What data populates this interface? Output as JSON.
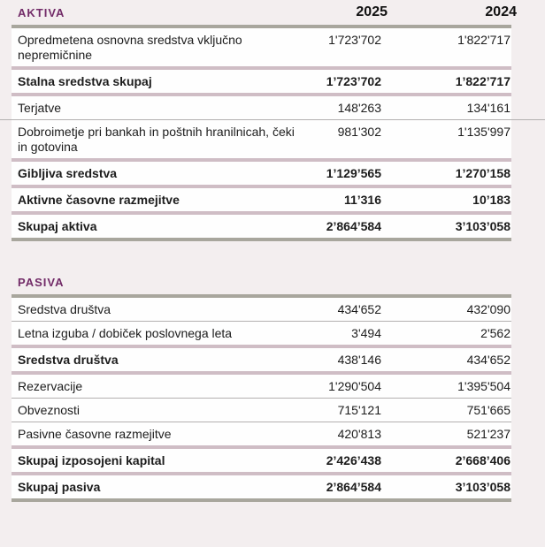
{
  "colors": {
    "page_background": "#f3eeef",
    "row_background": "#fefefe",
    "section_title": "#722b68",
    "separator_mauve": "#cfbdc5",
    "separator_gray": "#a8a69d",
    "separator_thin": "#b3b0b0",
    "text": "#1c1c1c"
  },
  "columns": {
    "year_1": "2025",
    "year_2": "2024"
  },
  "sections": [
    {
      "title": "AKTIVA",
      "show_years": true,
      "rows": [
        {
          "label_lines": [
            "Opredmetena osnovna sredstva vključno",
            "nepremičnine"
          ],
          "v2025": "1'723'702",
          "v2024": "1'822'717",
          "bold": false,
          "values_bold": false,
          "sep_after": "mauve"
        },
        {
          "label_lines": [
            "Stalna sredstva skupaj"
          ],
          "v2025": "1’723’702",
          "v2024": "1’822’717",
          "bold": true,
          "values_bold": true,
          "sep_after": "mauve"
        },
        {
          "label_lines": [
            "Terjatve"
          ],
          "v2025": "148'263",
          "v2024": "134'161",
          "bold": false,
          "values_bold": false,
          "sep_after": "thin-full"
        },
        {
          "label_lines": [
            "Dobroimetje pri bankah in poštnih hranilnicah, čeki",
            "in gotovina"
          ],
          "v2025": "981'302",
          "v2024": "1'135'997",
          "bold": false,
          "values_bold": false,
          "sep_after": "mauve"
        },
        {
          "label_lines": [
            "Gibljiva sredstva"
          ],
          "v2025": "1’129’565",
          "v2024": "1’270’158",
          "bold": true,
          "values_bold": true,
          "sep_after": "mauve"
        },
        {
          "label_lines": [
            "Aktivne časovne razmejitve"
          ],
          "v2025": "11’316",
          "v2024": "10’183",
          "bold": true,
          "values_bold": true,
          "sep_after": "mauve"
        },
        {
          "label_lines": [
            "Skupaj aktiva"
          ],
          "v2025": "2’864’584",
          "v2024": "3’103’058",
          "bold": true,
          "values_bold": true,
          "sep_after": "gray"
        }
      ]
    },
    {
      "title": "PASIVA",
      "show_years": false,
      "rows": [
        {
          "label_lines": [
            "Sredstva društva"
          ],
          "v2025": "434'652",
          "v2024": "432'090",
          "bold": false,
          "values_bold": false,
          "sep_after": "thin"
        },
        {
          "label_lines": [
            "Letna izguba / dobiček poslovnega leta"
          ],
          "v2025": "3'494",
          "v2024": "2'562",
          "bold": false,
          "values_bold": false,
          "sep_after": "mauve"
        },
        {
          "label_lines": [
            "Sredstva društva"
          ],
          "v2025": "438'146",
          "v2024": "434'652",
          "bold": true,
          "values_bold": false,
          "sep_after": "mauve"
        },
        {
          "label_lines": [
            "Rezervacije"
          ],
          "v2025": "1'290'504",
          "v2024": "1'395'504",
          "bold": false,
          "values_bold": false,
          "sep_after": "thin"
        },
        {
          "label_lines": [
            "Obveznosti"
          ],
          "v2025": "715'121",
          "v2024": "751'665",
          "bold": false,
          "values_bold": false,
          "sep_after": "thin"
        },
        {
          "label_lines": [
            "Pasivne časovne razmejitve"
          ],
          "v2025": "420'813",
          "v2024": "521'237",
          "bold": false,
          "values_bold": false,
          "sep_after": "mauve"
        },
        {
          "label_lines": [
            "Skupaj izposojeni kapital"
          ],
          "v2025": "2’426’438",
          "v2024": "2’668’406",
          "bold": true,
          "values_bold": true,
          "sep_after": "mauve"
        },
        {
          "label_lines": [
            "Skupaj pasiva"
          ],
          "v2025": "2’864’584",
          "v2024": "3’103’058",
          "bold": true,
          "values_bold": true,
          "sep_after": "gray"
        }
      ]
    }
  ]
}
